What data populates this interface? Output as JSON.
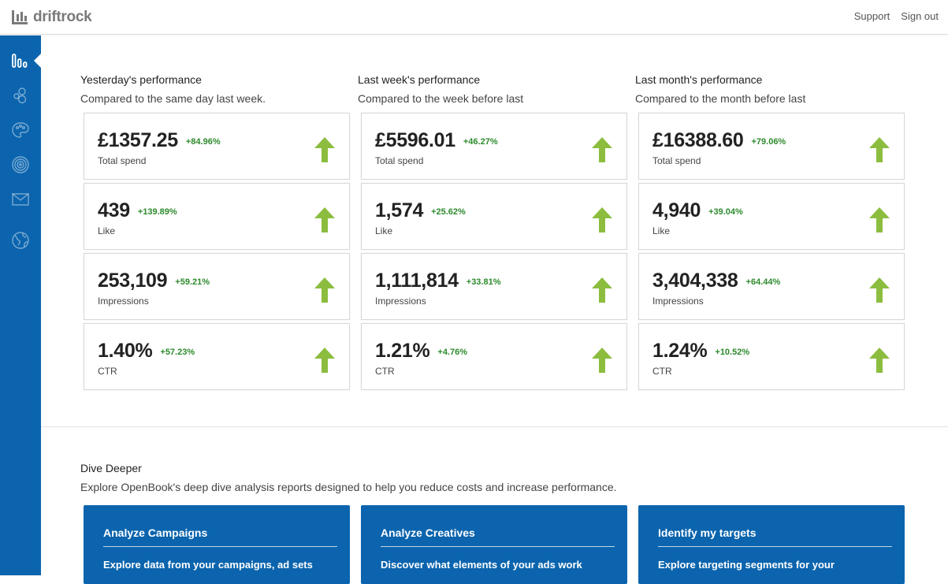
{
  "header": {
    "brand": "driftrock",
    "links": [
      "Support",
      "Sign out"
    ]
  },
  "sidebar": {
    "items": [
      {
        "icon": "bar-chart-icon",
        "active": true
      },
      {
        "icon": "people-icon",
        "active": false
      },
      {
        "icon": "palette-icon",
        "active": false
      },
      {
        "icon": "target-icon",
        "active": false
      },
      {
        "icon": "mail-icon",
        "active": false
      },
      {
        "icon": "globe-icon",
        "active": false
      }
    ]
  },
  "colors": {
    "accent": "#0b64ad",
    "positive": "#2d8a2d",
    "arrow": "#8cbd3f"
  },
  "performance": [
    {
      "title": "Yesterday's performance",
      "subtitle": "Compared to the same day last week.",
      "metrics": [
        {
          "value": "£1357.25",
          "change": "+84.96%",
          "label": "Total spend"
        },
        {
          "value": "439",
          "change": "+139.89%",
          "label": "Like"
        },
        {
          "value": "253,109",
          "change": "+59.21%",
          "label": "Impressions"
        },
        {
          "value": "1.40%",
          "change": "+57.23%",
          "label": "CTR"
        }
      ]
    },
    {
      "title": "Last week's performance",
      "subtitle": "Compared to the week before last",
      "metrics": [
        {
          "value": "£5596.01",
          "change": "+46.27%",
          "label": "Total spend"
        },
        {
          "value": "1,574",
          "change": "+25.62%",
          "label": "Like"
        },
        {
          "value": "1,111,814",
          "change": "+33.81%",
          "label": "Impressions"
        },
        {
          "value": "1.21%",
          "change": "+4.76%",
          "label": "CTR"
        }
      ]
    },
    {
      "title": "Last month's performance",
      "subtitle": "Compared to the month before last",
      "metrics": [
        {
          "value": "£16388.60",
          "change": "+79.06%",
          "label": "Total spend"
        },
        {
          "value": "4,940",
          "change": "+39.04%",
          "label": "Like"
        },
        {
          "value": "3,404,338",
          "change": "+64.44%",
          "label": "Impressions"
        },
        {
          "value": "1.24%",
          "change": "+10.52%",
          "label": "CTR"
        }
      ]
    }
  ],
  "dive_deeper": {
    "title": "Dive Deeper",
    "subtitle": "Explore OpenBook's deep dive analysis reports designed to help you reduce costs and increase performance.",
    "tiles": [
      {
        "title": "Analyze Campaigns",
        "desc": "Explore data from your campaigns, ad sets"
      },
      {
        "title": "Analyze Creatives",
        "desc": "Discover what elements of your ads work"
      },
      {
        "title": "Identify my targets",
        "desc": "Explore targeting segments for your"
      }
    ]
  }
}
